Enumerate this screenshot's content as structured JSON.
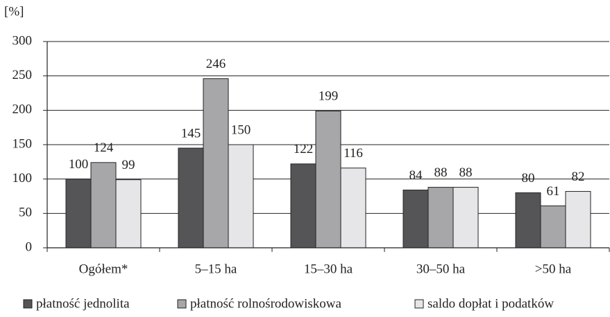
{
  "chart_data": {
    "type": "bar",
    "y_label": "[%]",
    "categories": [
      "Ogółem*",
      "5–15 ha",
      "15–30 ha",
      "30–50 ha",
      ">50 ha"
    ],
    "series": [
      {
        "name": "płatność jednolita",
        "color": "#555557",
        "values": [
          100,
          145,
          122,
          84,
          80
        ]
      },
      {
        "name": "płatność rolnośrodowiskowa",
        "color": "#a7a7aa",
        "values": [
          124,
          246,
          199,
          88,
          61
        ]
      },
      {
        "name": "saldo dopłat i podatków",
        "color": "#e6e6e8",
        "values": [
          99,
          150,
          116,
          88,
          82
        ]
      }
    ],
    "ylim": [
      0,
      300
    ],
    "yticks": [
      0,
      50,
      100,
      150,
      200,
      250,
      300
    ],
    "grid": true,
    "legend": "bottom"
  }
}
